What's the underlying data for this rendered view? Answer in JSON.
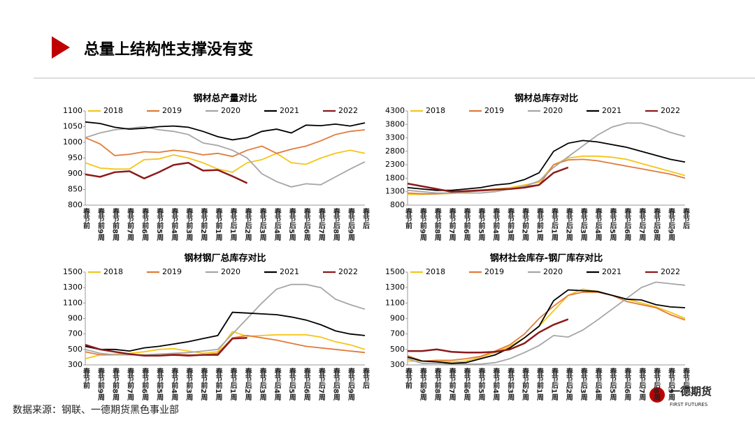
{
  "title": "总量上结构性支撑没有变",
  "source": "数据来源：钢联、一德期货黑色事业部",
  "logo": {
    "name": "一德期货",
    "english": "FIRST FUTURES"
  },
  "chart_data": [
    {
      "type": "line",
      "title": "钢材总产量对比",
      "categories": [
        "春节前",
        "春节前9周",
        "春节前8周",
        "春节前7周",
        "春节前6周",
        "春节前5周",
        "春节前4周",
        "春节前3周",
        "春节前2周",
        "春节前1周",
        "春节后1周",
        "春节后2周",
        "春节后3周",
        "春节后4周",
        "春节后5周",
        "春节后6周",
        "春节后7周",
        "春节后8周",
        "春节后9周",
        "春节后"
      ],
      "ylim": [
        800,
        1100
      ],
      "yticks": [
        800,
        850,
        900,
        950,
        1000,
        1050,
        1100
      ],
      "series": [
        {
          "name": "2018",
          "color": "#f5c518",
          "values": [
            935,
            918,
            915,
            915,
            945,
            947,
            960,
            950,
            935,
            915,
            905,
            935,
            945,
            965,
            935,
            930,
            950,
            965,
            975,
            965
          ]
        },
        {
          "name": "2019",
          "color": "#e07b39",
          "values": [
            1015,
            995,
            958,
            962,
            970,
            968,
            975,
            970,
            960,
            965,
            955,
            975,
            988,
            965,
            978,
            988,
            1005,
            1025,
            1035,
            1040
          ]
        },
        {
          "name": "2020",
          "color": "#a6a6a6",
          "values": [
            1015,
            1030,
            1040,
            1045,
            1050,
            1040,
            1035,
            1025,
            998,
            990,
            975,
            950,
            900,
            875,
            858,
            868,
            865,
            890,
            915,
            938
          ]
        },
        {
          "name": "2021",
          "color": "#000000",
          "values": [
            1065,
            1060,
            1048,
            1042,
            1045,
            1050,
            1052,
            1048,
            1035,
            1018,
            1008,
            1015,
            1035,
            1042,
            1030,
            1055,
            1053,
            1058,
            1052,
            1062
          ]
        },
        {
          "name": "2022",
          "color": "#8b1a1a",
          "values": [
            898,
            890,
            905,
            908,
            885,
            905,
            928,
            935,
            910,
            912,
            892,
            870,
            null,
            null,
            null,
            null,
            null,
            null,
            null,
            null
          ]
        }
      ]
    },
    {
      "type": "line",
      "title": "钢材总库存对比",
      "categories": [
        "春节前",
        "春节前9周",
        "春节前8周",
        "春节前7周",
        "春节前6周",
        "春节前5周",
        "春节前4周",
        "春节前3周",
        "春节前2周",
        "春节前1周",
        "春节后1周",
        "春节后2周",
        "春节后3周",
        "春节后4周",
        "春节后5周",
        "春节后6周",
        "春节后7周",
        "春节后8周",
        "春节后9周",
        "春节后"
      ],
      "ylim": [
        800,
        4300
      ],
      "yticks": [
        800,
        1300,
        1800,
        2300,
        2800,
        3300,
        3800,
        4300
      ],
      "series": [
        {
          "name": "2018",
          "color": "#f5c518",
          "values": [
            1200,
            1200,
            1220,
            1230,
            1280,
            1350,
            1400,
            1450,
            1550,
            1650,
            2300,
            2550,
            2620,
            2620,
            2580,
            2500,
            2350,
            2200,
            2050,
            1900
          ]
        },
        {
          "name": "2019",
          "color": "#e07b39",
          "values": [
            1250,
            1220,
            1220,
            1260,
            1300,
            1330,
            1360,
            1400,
            1500,
            1550,
            2300,
            2480,
            2500,
            2450,
            2350,
            2250,
            2150,
            2050,
            1950,
            1800
          ]
        },
        {
          "name": "2020",
          "color": "#a6a6a6",
          "values": [
            1350,
            1300,
            1250,
            1250,
            1250,
            1250,
            1300,
            1400,
            1500,
            1700,
            2200,
            2600,
            3000,
            3400,
            3700,
            3850,
            3850,
            3700,
            3500,
            3350
          ]
        },
        {
          "name": "2021",
          "color": "#000000",
          "values": [
            1450,
            1400,
            1350,
            1350,
            1400,
            1450,
            1550,
            1600,
            1750,
            2000,
            2800,
            3100,
            3200,
            3150,
            3050,
            2950,
            2800,
            2650,
            2500,
            2400
          ]
        },
        {
          "name": "2022",
          "color": "#8b1a1a",
          "values": [
            1600,
            1500,
            1400,
            1300,
            1320,
            1350,
            1380,
            1400,
            1450,
            1550,
            2000,
            2200,
            null,
            null,
            null,
            null,
            null,
            null,
            null,
            null
          ]
        }
      ]
    },
    {
      "type": "line",
      "title": "钢材钢厂总库存对比",
      "categories": [
        "春节前",
        "春节前9周",
        "春节前8周",
        "春节前7周",
        "春节前6周",
        "春节前5周",
        "春节前4周",
        "春节前3周",
        "春节前2周",
        "春节前1周",
        "春节后1周",
        "春节后2周",
        "春节后3周",
        "春节后4周",
        "春节后5周",
        "春节后6周",
        "春节后7周",
        "春节后8周",
        "春节后9周",
        "春节后"
      ],
      "ylim": [
        300,
        1500
      ],
      "yticks": [
        300,
        500,
        700,
        900,
        1100,
        1300,
        1500
      ],
      "series": [
        {
          "name": "2018",
          "color": "#f5c518",
          "values": [
            380,
            430,
            440,
            450,
            470,
            500,
            510,
            480,
            450,
            470,
            730,
            670,
            680,
            690,
            690,
            690,
            660,
            600,
            560,
            500
          ]
        },
        {
          "name": "2019",
          "color": "#e07b39",
          "values": [
            470,
            430,
            430,
            430,
            430,
            420,
            440,
            430,
            430,
            450,
            650,
            680,
            650,
            620,
            580,
            540,
            520,
            500,
            480,
            460
          ]
        },
        {
          "name": "2020",
          "color": "#a6a6a6",
          "values": [
            500,
            450,
            430,
            430,
            430,
            440,
            450,
            460,
            480,
            500,
            700,
            900,
            1100,
            1280,
            1340,
            1340,
            1300,
            1150,
            1080,
            1020
          ]
        },
        {
          "name": "2021",
          "color": "#000000",
          "values": [
            540,
            500,
            500,
            480,
            520,
            540,
            570,
            600,
            640,
            680,
            980,
            970,
            960,
            950,
            920,
            880,
            820,
            740,
            700,
            680
          ]
        },
        {
          "name": "2022",
          "color": "#8b1a1a",
          "values": [
            560,
            500,
            470,
            440,
            420,
            420,
            430,
            420,
            430,
            430,
            640,
            650,
            null,
            null,
            null,
            null,
            null,
            null,
            null,
            null
          ]
        }
      ]
    },
    {
      "type": "line",
      "title": "钢材社会库存-钢厂库存对比",
      "categories": [
        "春节前",
        "春节前9周",
        "春节前8周",
        "春节前7周",
        "春节前6周",
        "春节前5周",
        "春节前4周",
        "春节前3周",
        "春节前2周",
        "春节前1周",
        "春节后1周",
        "春节后2周",
        "春节后3周",
        "春节后4周",
        "春节后5周",
        "春节后6周",
        "春节后7周",
        "春节后8周",
        "春节后9周",
        "春节后"
      ],
      "ylim": [
        300,
        1500
      ],
      "yticks": [
        300,
        500,
        700,
        900,
        1100,
        1300,
        1500
      ],
      "series": [
        {
          "name": "2018",
          "color": "#f5c518",
          "values": [
            350,
            350,
            350,
            340,
            350,
            400,
            460,
            540,
            650,
            800,
            1000,
            1200,
            1280,
            1250,
            1200,
            1150,
            1100,
            1050,
            980,
            900
          ]
        },
        {
          "name": "2019",
          "color": "#e07b39",
          "values": [
            420,
            350,
            360,
            360,
            380,
            410,
            480,
            560,
            700,
            900,
            1060,
            1200,
            1240,
            1240,
            1200,
            1120,
            1080,
            1040,
            950,
            880
          ]
        },
        {
          "name": "2020",
          "color": "#a6a6a6",
          "values": [
            380,
            320,
            320,
            310,
            310,
            310,
            330,
            380,
            460,
            550,
            680,
            660,
            750,
            880,
            1020,
            1160,
            1300,
            1370,
            1350,
            1330
          ]
        },
        {
          "name": "2021",
          "color": "#000000",
          "values": [
            400,
            350,
            340,
            320,
            330,
            380,
            430,
            520,
            650,
            800,
            1130,
            1270,
            1260,
            1250,
            1200,
            1150,
            1140,
            1080,
            1050,
            1040
          ]
        },
        {
          "name": "2022",
          "color": "#8b1a1a",
          "values": [
            480,
            480,
            500,
            470,
            460,
            460,
            470,
            500,
            580,
            720,
            820,
            890,
            null,
            null,
            null,
            null,
            null,
            null,
            null,
            null
          ]
        }
      ]
    }
  ]
}
